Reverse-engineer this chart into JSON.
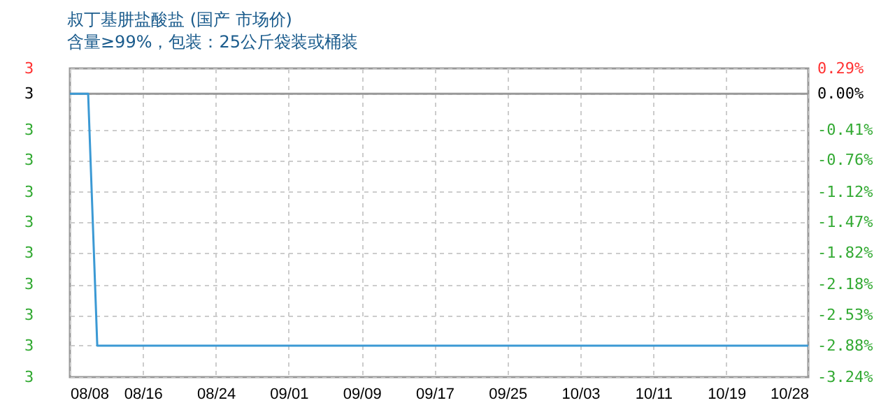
{
  "chart_data": {
    "type": "line",
    "title": "叔丁基肼盐酸盐 (国产 市场价)",
    "subtitle": "含量≥99%，包装：25公斤袋装或桶装",
    "x": [
      "--08-08",
      "--08-10",
      "--08-11",
      "--10-28"
    ],
    "series": [
      {
        "color": "#3b99d4",
        "axis": "y2",
        "values": [
          0,
          0,
          -2.88,
          -2.88
        ]
      }
    ],
    "xlim": [
      "--08-08",
      "--10-28"
    ],
    "xticks": [
      {
        "value": "--08-08",
        "label": "08/08"
      },
      {
        "value": "--08-16",
        "label": "08/16"
      },
      {
        "value": "--08-24",
        "label": "08/24"
      },
      {
        "value": "--09-01",
        "label": "09/01"
      },
      {
        "value": "--09-09",
        "label": "09/09"
      },
      {
        "value": "--09-17",
        "label": "09/17"
      },
      {
        "value": "--09-25",
        "label": "09/25"
      },
      {
        "value": "--10-03",
        "label": "10/03"
      },
      {
        "value": "--10-11",
        "label": "10/11"
      },
      {
        "value": "--10-19",
        "label": "10/19"
      },
      {
        "value": "--10-28",
        "label": "10/28"
      }
    ],
    "ylim": [
      2.9028,
      3.0087
    ],
    "yticks": [
      {
        "value": 3.0087,
        "label": "3"
      },
      {
        "value": 3,
        "label": "3"
      },
      {
        "value": 2.9877,
        "label": "3"
      },
      {
        "value": 2.9772,
        "label": "3"
      },
      {
        "value": 2.9664,
        "label": "3"
      },
      {
        "value": 2.9559,
        "label": "3"
      },
      {
        "value": 2.9454,
        "label": "3"
      },
      {
        "value": 2.9346,
        "label": "3"
      },
      {
        "value": 2.9241,
        "label": "3"
      },
      {
        "value": 2.9136,
        "label": "3"
      },
      {
        "value": 2.9028,
        "label": "3"
      }
    ],
    "y2lim": [
      -3.24,
      0.29
    ],
    "y2ticks": [
      {
        "value": 0.29,
        "label": "0.29%"
      },
      {
        "value": 0,
        "label": "0.00%"
      },
      {
        "value": -0.41,
        "label": "-0.41%"
      },
      {
        "value": -0.76,
        "label": "-0.76%"
      },
      {
        "value": -1.12,
        "label": "-1.12%"
      },
      {
        "value": -1.47,
        "label": "-1.47%"
      },
      {
        "value": -1.82,
        "label": "-1.82%"
      },
      {
        "value": -2.18,
        "label": "-2.18%"
      },
      {
        "value": -2.53,
        "label": "-2.53%"
      },
      {
        "value": -2.88,
        "label": "-2.88%"
      },
      {
        "value": -3.24,
        "label": "-3.24%"
      }
    ],
    "ref_lines": [
      {
        "axis": "y",
        "value": 3,
        "color": "#999999"
      }
    ],
    "grid": true
  }
}
